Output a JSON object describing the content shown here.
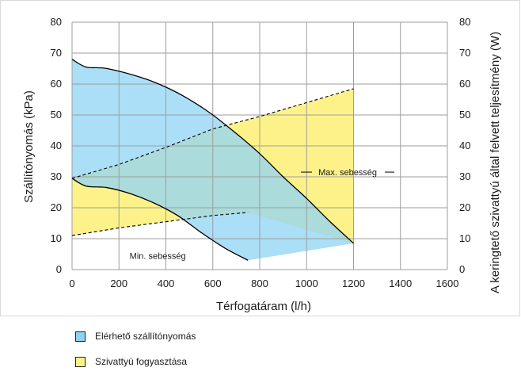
{
  "chart_data": {
    "type": "area",
    "xlabel": "Térfogatáram (l/h)",
    "ylabel": "Szállítónyomás (kPa)",
    "y2label": "A keringtető szivattyú által felvett teljesítmény (W)",
    "xlim": [
      0,
      1600
    ],
    "ylim": [
      0,
      80
    ],
    "y2lim": [
      0,
      80
    ],
    "x_ticks": [
      "0",
      "200",
      "400",
      "600",
      "800",
      "1000",
      "1200",
      "1400",
      "1600"
    ],
    "y_ticks": [
      "0",
      "10",
      "20",
      "30",
      "40",
      "50",
      "60",
      "70",
      "80"
    ],
    "y2_ticks": [
      "0",
      "10",
      "20",
      "30",
      "40",
      "50",
      "60",
      "70",
      "80"
    ],
    "grid": true,
    "curves": {
      "max_speed": {
        "x": [
          0,
          60,
          150,
          300,
          400,
          500,
          600,
          700,
          800,
          900,
          1000,
          1100,
          1200
        ],
        "y": [
          68,
          65.5,
          65,
          62,
          59,
          55,
          50,
          44,
          37.5,
          30,
          23,
          15.5,
          8.5
        ]
      },
      "min_speed": {
        "x": [
          0,
          60,
          150,
          250,
          350,
          450,
          550,
          650,
          750
        ],
        "y": [
          29.5,
          27,
          26.5,
          24.5,
          21.5,
          17.5,
          12,
          7,
          3
        ]
      },
      "power_max": {
        "x": [
          0,
          200,
          400,
          600,
          800,
          1000,
          1200
        ],
        "y": [
          29.5,
          34,
          39.5,
          45.5,
          49.5,
          54,
          58.5
        ]
      },
      "power_min": {
        "x": [
          0,
          200,
          400,
          600,
          750
        ],
        "y": [
          11,
          13.5,
          15.5,
          17.5,
          18.5
        ]
      },
      "pressure_bottom": {
        "x": [
          750,
          1200
        ],
        "y": [
          3,
          8.5
        ]
      }
    },
    "series": [
      {
        "name": "Elérhető szállítónyomás",
        "color": "#8fd3f4"
      },
      {
        "name": "Szivattyú fogyasztása",
        "color": "#fdf28a"
      }
    ],
    "annotations": [
      {
        "text": "Max. sebesség",
        "x": 1050,
        "y": 30.5
      },
      {
        "text": "Min. sebesség",
        "x": 365,
        "y": 3.5
      }
    ]
  }
}
